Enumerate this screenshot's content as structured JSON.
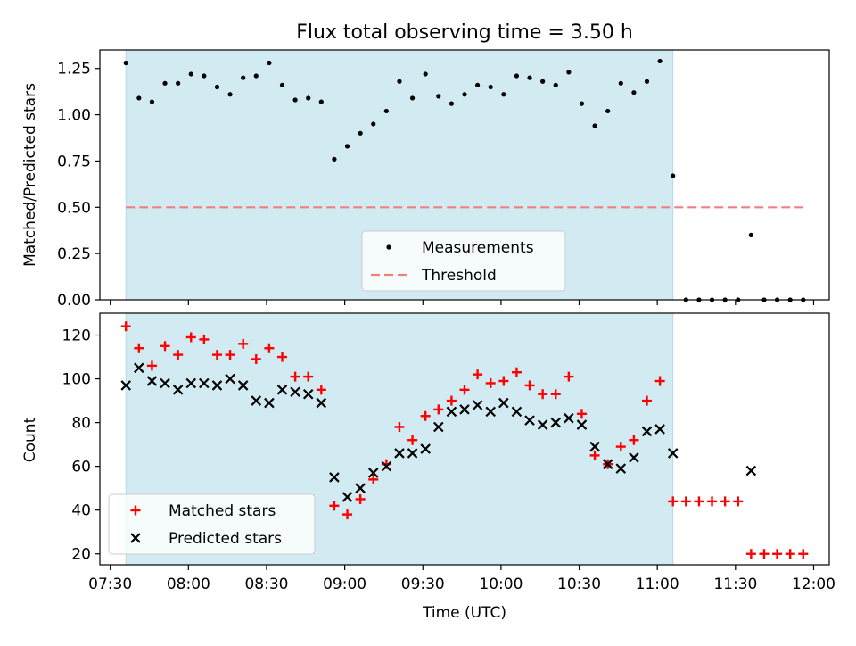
{
  "figure": {
    "title": "Flux total observing time = 3.50 h",
    "xlabel": "Time (UTC)"
  },
  "colors": {
    "shade": "#add8e6",
    "measurement": "#000000",
    "threshold": "#f08080",
    "matched": "#ff0000",
    "predicted": "#000000"
  },
  "chart_data": [
    {
      "type": "scatter",
      "panel": "top",
      "ylabel": "Matched/Predicted stars",
      "xlim": [
        "07:26",
        "12:06"
      ],
      "ylim": [
        0,
        1.35
      ],
      "yticks": [
        0,
        0.25,
        0.5,
        0.75,
        1.0,
        1.25
      ],
      "ytick_labels": [
        "0.00",
        "0.25",
        "0.50",
        "0.75",
        "1.00",
        "1.25"
      ],
      "xticks": [
        "07:30",
        "08:00",
        "08:30",
        "09:00",
        "09:30",
        "10:00",
        "10:30",
        "11:00",
        "11:30",
        "12:00"
      ],
      "shaded_span": [
        "07:36",
        "11:06"
      ],
      "legend": {
        "loc": "lower center",
        "entries": [
          "Measurements",
          "Threshold"
        ]
      },
      "series": [
        {
          "name": "Measurements",
          "marker": "dot",
          "points": [
            [
              "07:36",
              1.28
            ],
            [
              "07:41",
              1.09
            ],
            [
              "07:46",
              1.07
            ],
            [
              "07:51",
              1.17
            ],
            [
              "07:56",
              1.17
            ],
            [
              "08:01",
              1.22
            ],
            [
              "08:06",
              1.21
            ],
            [
              "08:11",
              1.15
            ],
            [
              "08:16",
              1.11
            ],
            [
              "08:21",
              1.2
            ],
            [
              "08:26",
              1.21
            ],
            [
              "08:31",
              1.28
            ],
            [
              "08:36",
              1.16
            ],
            [
              "08:41",
              1.08
            ],
            [
              "08:46",
              1.09
            ],
            [
              "08:51",
              1.07
            ],
            [
              "08:56",
              0.76
            ],
            [
              "09:01",
              0.83
            ],
            [
              "09:06",
              0.9
            ],
            [
              "09:11",
              0.95
            ],
            [
              "09:16",
              1.02
            ],
            [
              "09:21",
              1.18
            ],
            [
              "09:26",
              1.09
            ],
            [
              "09:31",
              1.22
            ],
            [
              "09:36",
              1.1
            ],
            [
              "09:41",
              1.06
            ],
            [
              "09:46",
              1.11
            ],
            [
              "09:51",
              1.16
            ],
            [
              "09:56",
              1.15
            ],
            [
              "10:01",
              1.11
            ],
            [
              "10:06",
              1.21
            ],
            [
              "10:11",
              1.2
            ],
            [
              "10:16",
              1.18
            ],
            [
              "10:21",
              1.16
            ],
            [
              "10:26",
              1.23
            ],
            [
              "10:31",
              1.06
            ],
            [
              "10:36",
              0.94
            ],
            [
              "10:41",
              1.02
            ],
            [
              "10:46",
              1.17
            ],
            [
              "10:51",
              1.12
            ],
            [
              "10:56",
              1.18
            ],
            [
              "11:01",
              1.29
            ],
            [
              "11:06",
              0.67
            ],
            [
              "11:11",
              0.0
            ],
            [
              "11:16",
              0.0
            ],
            [
              "11:21",
              0.0
            ],
            [
              "11:26",
              0.0
            ],
            [
              "11:31",
              0.0
            ],
            [
              "11:36",
              0.35
            ],
            [
              "11:41",
              0.0
            ],
            [
              "11:46",
              0.0
            ],
            [
              "11:51",
              0.0
            ],
            [
              "11:56",
              0.0
            ]
          ]
        },
        {
          "name": "Threshold",
          "line": "dashed",
          "points": [
            [
              "07:36",
              0.5
            ],
            [
              "11:56",
              0.5
            ]
          ]
        }
      ]
    },
    {
      "type": "scatter",
      "panel": "bottom",
      "ylabel": "Count",
      "xlim": [
        "07:26",
        "12:06"
      ],
      "ylim": [
        15,
        130
      ],
      "yticks": [
        20,
        40,
        60,
        80,
        100,
        120
      ],
      "ytick_labels": [
        "20",
        "40",
        "60",
        "80",
        "100",
        "120"
      ],
      "xticks": [
        "07:30",
        "08:00",
        "08:30",
        "09:00",
        "09:30",
        "10:00",
        "10:30",
        "11:00",
        "11:30",
        "12:00"
      ],
      "xtick_labels": [
        "07:30",
        "08:00",
        "08:30",
        "09:00",
        "09:30",
        "10:00",
        "10:30",
        "11:00",
        "11:30",
        "12:00"
      ],
      "shaded_span": [
        "07:36",
        "11:06"
      ],
      "legend": {
        "loc": "lower left",
        "entries": [
          "Matched stars",
          "Predicted stars"
        ]
      },
      "series": [
        {
          "name": "Matched stars",
          "marker": "plus",
          "points": [
            [
              "07:36",
              124
            ],
            [
              "07:41",
              114
            ],
            [
              "07:46",
              106
            ],
            [
              "07:51",
              115
            ],
            [
              "07:56",
              111
            ],
            [
              "08:01",
              119
            ],
            [
              "08:06",
              118
            ],
            [
              "08:11",
              111
            ],
            [
              "08:16",
              111
            ],
            [
              "08:21",
              116
            ],
            [
              "08:26",
              109
            ],
            [
              "08:31",
              114
            ],
            [
              "08:36",
              110
            ],
            [
              "08:41",
              101
            ],
            [
              "08:46",
              101
            ],
            [
              "08:51",
              95
            ],
            [
              "08:56",
              42
            ],
            [
              "09:01",
              38
            ],
            [
              "09:06",
              45
            ],
            [
              "09:11",
              54
            ],
            [
              "09:16",
              61
            ],
            [
              "09:21",
              78
            ],
            [
              "09:26",
              72
            ],
            [
              "09:31",
              83
            ],
            [
              "09:36",
              86
            ],
            [
              "09:41",
              90
            ],
            [
              "09:46",
              95
            ],
            [
              "09:51",
              102
            ],
            [
              "09:56",
              98
            ],
            [
              "10:01",
              99
            ],
            [
              "10:06",
              103
            ],
            [
              "10:11",
              97
            ],
            [
              "10:16",
              93
            ],
            [
              "10:21",
              93
            ],
            [
              "10:26",
              101
            ],
            [
              "10:31",
              84
            ],
            [
              "10:36",
              65
            ],
            [
              "10:41",
              61
            ],
            [
              "10:46",
              69
            ],
            [
              "10:51",
              72
            ],
            [
              "10:56",
              90
            ],
            [
              "11:01",
              99
            ],
            [
              "11:06",
              44
            ],
            [
              "11:11",
              44
            ],
            [
              "11:16",
              44
            ],
            [
              "11:21",
              44
            ],
            [
              "11:26",
              44
            ],
            [
              "11:31",
              44
            ],
            [
              "11:36",
              20
            ],
            [
              "11:41",
              20
            ],
            [
              "11:46",
              20
            ],
            [
              "11:51",
              20
            ],
            [
              "11:56",
              20
            ]
          ]
        },
        {
          "name": "Predicted stars",
          "marker": "x",
          "points": [
            [
              "07:36",
              97
            ],
            [
              "07:41",
              105
            ],
            [
              "07:46",
              99
            ],
            [
              "07:51",
              98
            ],
            [
              "07:56",
              95
            ],
            [
              "08:01",
              98
            ],
            [
              "08:06",
              98
            ],
            [
              "08:11",
              97
            ],
            [
              "08:16",
              100
            ],
            [
              "08:21",
              97
            ],
            [
              "08:26",
              90
            ],
            [
              "08:31",
              89
            ],
            [
              "08:36",
              95
            ],
            [
              "08:41",
              94
            ],
            [
              "08:46",
              93
            ],
            [
              "08:51",
              89
            ],
            [
              "08:56",
              55
            ],
            [
              "09:01",
              46
            ],
            [
              "09:06",
              50
            ],
            [
              "09:11",
              57
            ],
            [
              "09:16",
              60
            ],
            [
              "09:21",
              66
            ],
            [
              "09:26",
              66
            ],
            [
              "09:31",
              68
            ],
            [
              "09:36",
              78
            ],
            [
              "09:41",
              85
            ],
            [
              "09:46",
              86
            ],
            [
              "09:51",
              88
            ],
            [
              "09:56",
              85
            ],
            [
              "10:01",
              89
            ],
            [
              "10:06",
              85
            ],
            [
              "10:11",
              81
            ],
            [
              "10:16",
              79
            ],
            [
              "10:21",
              80
            ],
            [
              "10:26",
              82
            ],
            [
              "10:31",
              79
            ],
            [
              "10:36",
              69
            ],
            [
              "10:41",
              61
            ],
            [
              "10:46",
              59
            ],
            [
              "10:51",
              64
            ],
            [
              "10:56",
              76
            ],
            [
              "11:01",
              77
            ],
            [
              "11:06",
              66
            ],
            [
              "11:36",
              58
            ]
          ]
        }
      ]
    }
  ]
}
